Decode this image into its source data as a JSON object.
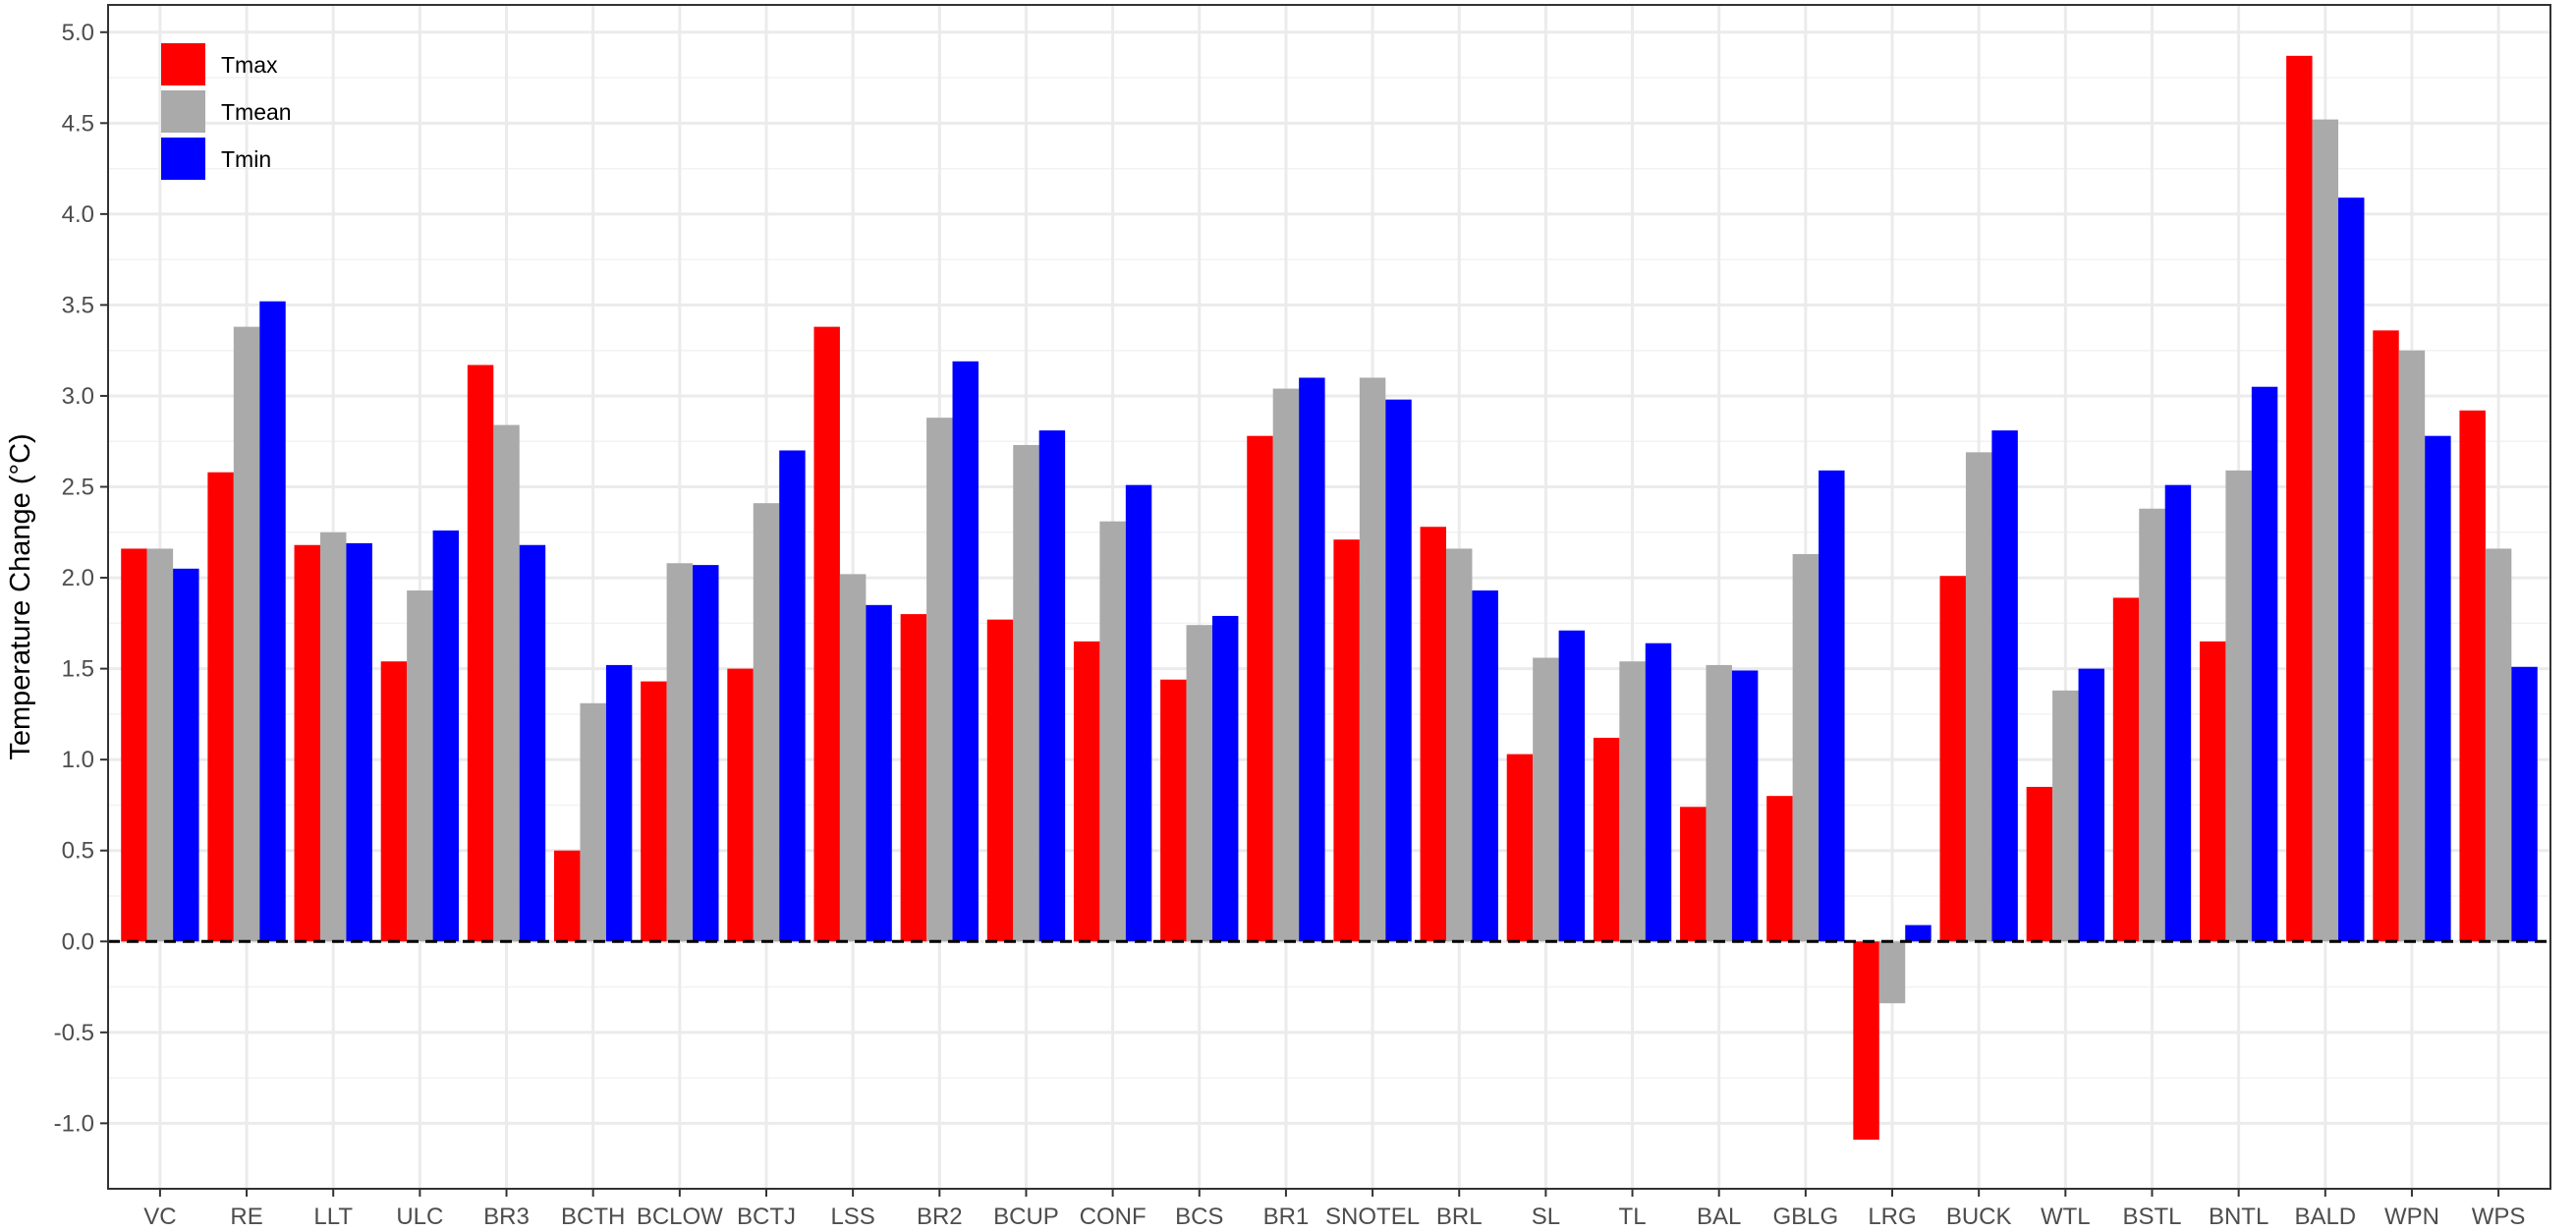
{
  "chart_data": {
    "type": "bar",
    "title": "",
    "xlabel": "",
    "ylabel": "Temperature Change (°C)",
    "ylim": [
      -1.36,
      5.15
    ],
    "yticks": [
      -1.0,
      -0.5,
      0.0,
      0.5,
      1.0,
      1.5,
      2.0,
      2.5,
      3.0,
      3.5,
      4.0,
      4.5,
      5.0
    ],
    "ytick_labels": [
      "-1.0",
      "-0.5",
      "0.0",
      "0.5",
      "1.0",
      "1.5",
      "2.0",
      "2.5",
      "3.0",
      "3.5",
      "4.0",
      "4.5",
      "5.0"
    ],
    "grid": true,
    "reference_line": {
      "y": 0,
      "style": "dashed"
    },
    "legend": {
      "position": "top-left"
    },
    "categories": [
      "VC",
      "RE",
      "LLT",
      "ULC",
      "BR3",
      "BCTH",
      "BCLOW",
      "BCTJ",
      "LSS",
      "BR2",
      "BCUP",
      "CONF",
      "BCS",
      "BR1",
      "SNOTEL",
      "BRL",
      "SL",
      "TL",
      "BAL",
      "GBLG",
      "LRG",
      "BUCK",
      "WTL",
      "BSTL",
      "BNTL",
      "BALD",
      "WPN",
      "WPS"
    ],
    "series": [
      {
        "name": "Tmax",
        "color": "#ff0000",
        "values": [
          2.16,
          2.58,
          2.18,
          1.54,
          3.17,
          0.5,
          1.43,
          1.5,
          3.38,
          1.8,
          1.77,
          1.65,
          1.44,
          2.78,
          2.21,
          2.28,
          1.03,
          1.12,
          0.74,
          0.8,
          -1.09,
          2.01,
          0.85,
          1.89,
          1.65,
          4.87,
          3.36,
          2.92
        ]
      },
      {
        "name": "Tmean",
        "color": "#aaaaaa",
        "values": [
          2.16,
          3.38,
          2.25,
          1.93,
          2.84,
          1.31,
          2.08,
          2.41,
          2.02,
          2.88,
          2.73,
          2.31,
          1.74,
          3.04,
          3.1,
          2.16,
          1.56,
          1.54,
          1.52,
          2.13,
          -0.34,
          2.69,
          1.38,
          2.38,
          2.59,
          4.52,
          3.25,
          2.16
        ]
      },
      {
        "name": "Tmin",
        "color": "#0000ff",
        "values": [
          2.05,
          3.52,
          2.19,
          2.26,
          2.18,
          1.52,
          2.07,
          2.7,
          1.85,
          3.19,
          2.81,
          2.51,
          1.79,
          3.1,
          2.98,
          1.93,
          1.71,
          1.64,
          1.49,
          2.59,
          0.09,
          2.81,
          1.5,
          2.51,
          3.05,
          4.09,
          2.78,
          1.51
        ]
      }
    ]
  }
}
